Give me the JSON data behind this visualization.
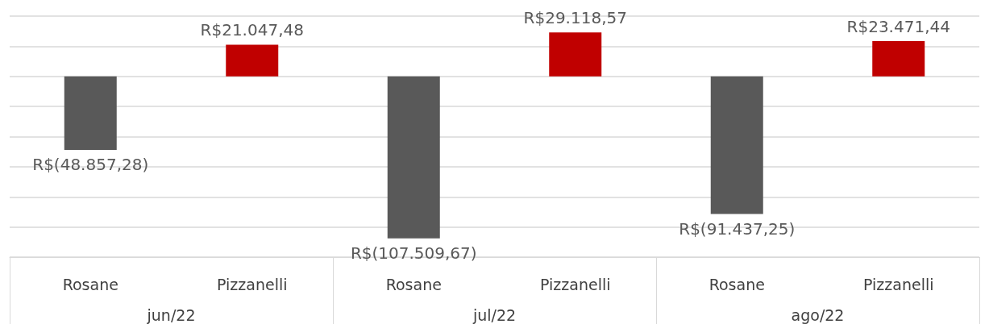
{
  "chart_data": {
    "type": "bar",
    "categories": [
      "Rosane",
      "Pizzanelli",
      "Rosane",
      "Pizzanelli",
      "Rosane",
      "Pizzanelli"
    ],
    "values": [
      -48857.28,
      21047.48,
      -107509.67,
      29118.57,
      -91437.25,
      23471.44
    ],
    "colors": [
      "#595959",
      "#c00000",
      "#595959",
      "#c00000",
      "#595959",
      "#c00000"
    ],
    "value_labels": [
      "R$(48.857,28)",
      "R$21.047,48",
      "R$(107.509,67)",
      "R$29.118,57",
      "R$(91.437,25)",
      "R$23.471,44"
    ],
    "annotations": [
      "jun/22",
      "jul/22",
      "ago/22"
    ],
    "ylim": [
      -120000,
      40000
    ],
    "yticks": [
      {
        "value": -120000,
        "label": null
      },
      {
        "value": -100000,
        "label": null
      },
      {
        "value": -80000,
        "label": null
      },
      {
        "value": -60000,
        "label": null
      },
      {
        "value": -40000,
        "label": null
      },
      {
        "value": -20000,
        "label": null
      },
      {
        "value": 0,
        "label": null
      },
      {
        "value": 20000,
        "label": null
      },
      {
        "value": 40000,
        "label": null
      }
    ],
    "grid": "y",
    "tick_labels": "x"
  }
}
